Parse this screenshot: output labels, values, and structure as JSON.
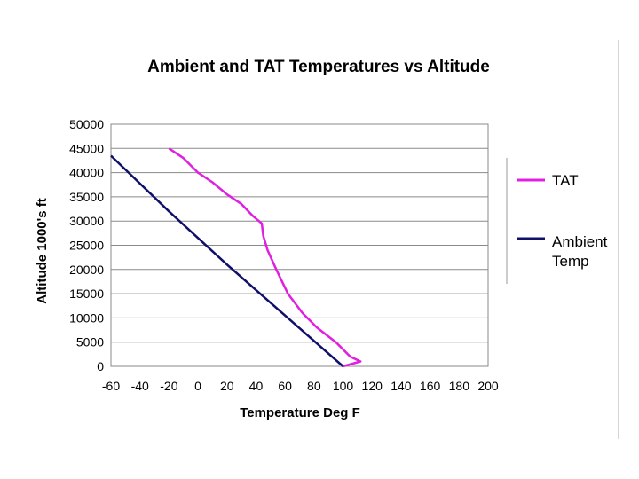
{
  "chart_data": {
    "type": "line",
    "title": "Ambient and TAT Temperatures vs Altitude",
    "xlabel": "Temperature Deg F",
    "ylabel": "Altitude 1000's ft",
    "xlim": [
      -60,
      200
    ],
    "ylim": [
      0,
      50000
    ],
    "x_ticks": [
      "-60",
      "-40",
      "-20",
      "0",
      "20",
      "40",
      "60",
      "80",
      "100",
      "120",
      "140",
      "160",
      "180",
      "200"
    ],
    "y_ticks": [
      "0",
      "5000",
      "10000",
      "15000",
      "20000",
      "25000",
      "30000",
      "35000",
      "40000",
      "45000",
      "50000"
    ],
    "grid": "horizontal",
    "legend_position": "right",
    "series": [
      {
        "name": "TAT",
        "color": "#e020e0",
        "points": [
          [
            -20,
            45000
          ],
          [
            -10,
            43000
          ],
          [
            0,
            40000
          ],
          [
            10,
            38000
          ],
          [
            20,
            35500
          ],
          [
            30,
            33500
          ],
          [
            38,
            31000
          ],
          [
            44,
            29500
          ],
          [
            45,
            27000
          ],
          [
            48,
            24000
          ],
          [
            54,
            20000
          ],
          [
            62,
            15000
          ],
          [
            72,
            11000
          ],
          [
            82,
            8000
          ],
          [
            95,
            5000
          ],
          [
            105,
            2000
          ],
          [
            112,
            1000
          ],
          [
            100,
            0
          ]
        ]
      },
      {
        "name": "Ambient Temp",
        "color": "#10106a",
        "points": [
          [
            -60,
            43500
          ],
          [
            -20,
            32000
          ],
          [
            20,
            21000
          ],
          [
            60,
            10500
          ],
          [
            100,
            0
          ]
        ]
      }
    ]
  },
  "legend": {
    "tat_label": "TAT",
    "ambient_line1": "Ambient",
    "ambient_line2": "Temp"
  }
}
